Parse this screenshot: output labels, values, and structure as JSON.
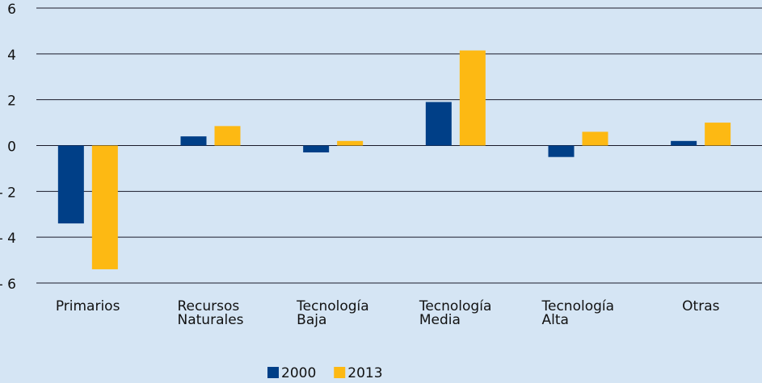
{
  "chart_data": {
    "type": "bar",
    "categories": [
      "Primarios",
      "Recursos\nNaturales",
      "Tecnología\nBaja",
      "Tecnología\nMedia",
      "Tecnología\nAlta",
      "Otras"
    ],
    "series": [
      {
        "name": "2000",
        "color": "#003f87",
        "values": [
          -3.4,
          0.4,
          -0.3,
          1.9,
          -0.5,
          0.2
        ]
      },
      {
        "name": "2013",
        "color": "#fdb913",
        "values": [
          -5.4,
          0.85,
          0.2,
          4.15,
          0.6,
          1.0
        ]
      }
    ],
    "ylim": [
      -6,
      6
    ],
    "yticks": [
      {
        "value": -6,
        "label": "- 6"
      },
      {
        "value": -4,
        "label": "- 4"
      },
      {
        "value": -2,
        "label": "- 2"
      },
      0,
      2,
      4,
      6
    ],
    "grid": true
  }
}
